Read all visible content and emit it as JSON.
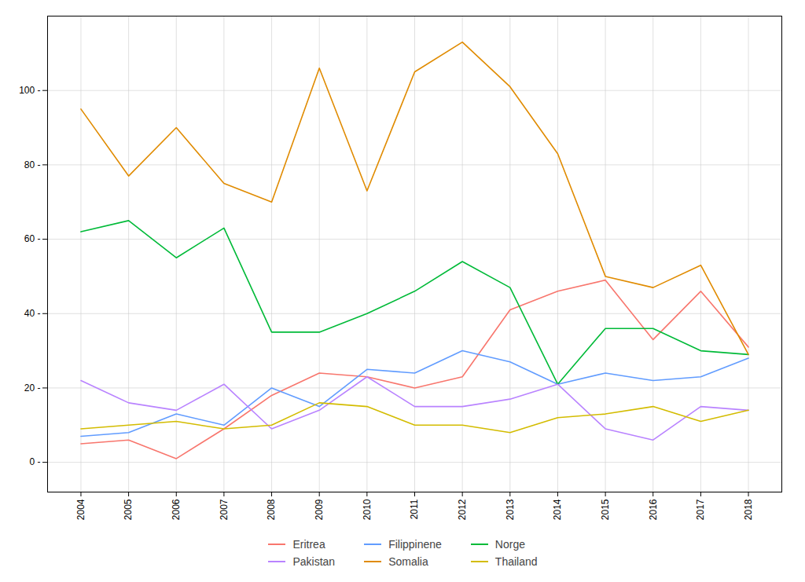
{
  "chart_data": {
    "type": "line",
    "x": [
      2004,
      2005,
      2006,
      2007,
      2008,
      2009,
      2010,
      2011,
      2012,
      2013,
      2014,
      2015,
      2016,
      2017,
      2018
    ],
    "xlim": [
      2003.3,
      2018.7
    ],
    "xticks": [
      2004,
      2005,
      2006,
      2007,
      2008,
      2009,
      2010,
      2011,
      2012,
      2013,
      2014,
      2015,
      2016,
      2017,
      2018
    ],
    "ylim": [
      -8,
      120
    ],
    "yticks": [
      {
        "value": 0,
        "label": "0 -"
      },
      {
        "value": 20,
        "label": "20 -"
      },
      {
        "value": 40,
        "label": "40 -"
      },
      {
        "value": 60,
        "label": "60 -"
      },
      {
        "value": 80,
        "label": "80 -"
      },
      {
        "value": 100,
        "label": "100 -"
      }
    ],
    "grid": true,
    "legend": "bottom",
    "series": [
      {
        "name": "Eritrea",
        "color": "#F8766D",
        "values": [
          5,
          6,
          1,
          9,
          18,
          24,
          23,
          20,
          23,
          41,
          46,
          49,
          33,
          46,
          31
        ]
      },
      {
        "name": "Filippinene",
        "color": "#619CFF",
        "values": [
          7,
          8,
          13,
          10,
          20,
          15,
          25,
          24,
          30,
          27,
          21,
          24,
          22,
          23,
          28
        ]
      },
      {
        "name": "Norge",
        "color": "#00BA38",
        "values": [
          62,
          65,
          55,
          63,
          35,
          35,
          40,
          46,
          54,
          47,
          21,
          36,
          36,
          30,
          29
        ]
      },
      {
        "name": "Pakistan",
        "color": "#B983FF",
        "values": [
          22,
          16,
          14,
          21,
          9,
          14,
          23,
          15,
          15,
          17,
          21,
          9,
          6,
          15,
          14
        ]
      },
      {
        "name": "Somalia",
        "color": "#E08B00",
        "values": [
          95,
          77,
          90,
          75,
          70,
          106,
          73,
          105,
          113,
          101,
          83,
          50,
          47,
          53,
          29
        ]
      },
      {
        "name": "Thailand",
        "color": "#D3BC00",
        "values": [
          9,
          10,
          11,
          9,
          10,
          16,
          15,
          10,
          10,
          8,
          12,
          13,
          15,
          11,
          14
        ]
      }
    ]
  }
}
